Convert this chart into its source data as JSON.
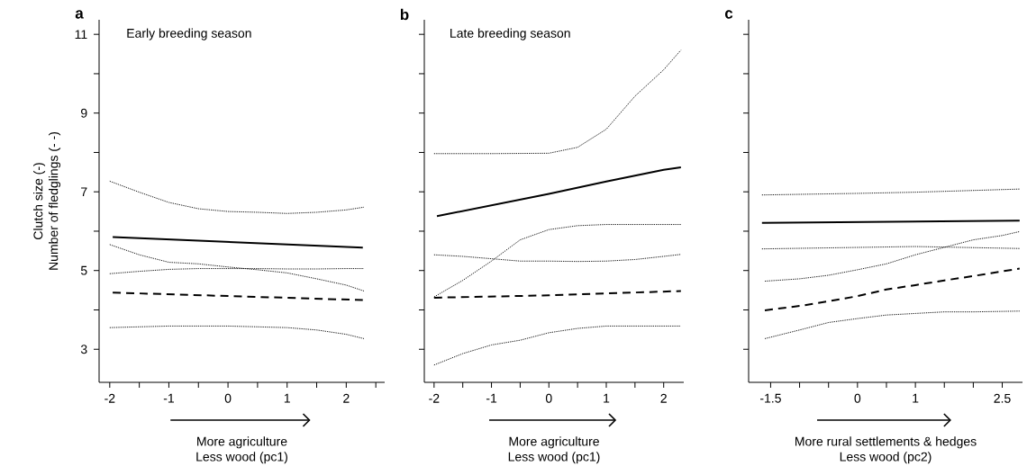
{
  "chart_data": [
    {
      "type": "line",
      "title": "a",
      "annotations": [
        "Early breeding season"
      ],
      "xlabel": "More agriculture\nLess wood (pc1)",
      "ylabel": "Clutch size (-)\nNumber of fledglings (- -)",
      "xlim": [
        -2.18,
        2.65
      ],
      "ylim": [
        2.16,
        11.37
      ],
      "xticks": [
        -2,
        {
          "value": -1.5,
          "label": null
        },
        -1,
        {
          "value": -0.5,
          "label": null
        },
        0,
        {
          "value": 0.5,
          "label": null
        },
        1,
        {
          "value": 1.5,
          "label": null
        },
        2,
        {
          "value": 2.5,
          "label": null
        }
      ],
      "yticks": [
        3,
        {
          "value": 4,
          "label": null
        },
        5,
        {
          "value": 6,
          "label": null
        },
        7,
        {
          "value": 8,
          "label": null
        },
        9,
        {
          "value": 10,
          "label": null
        },
        11
      ],
      "series": [
        {
          "color": "#000000",
          "line_style": "solid",
          "x": [
            -1.95,
            2.28
          ],
          "values": [
            5.85,
            5.58
          ]
        },
        {
          "color": "#000000",
          "line_style": "dashed",
          "x": [
            -1.95,
            2.28
          ],
          "values": [
            4.44,
            4.25
          ]
        },
        {
          "color": "#000000",
          "line_style": "dotted",
          "x": [
            -2,
            -1.5,
            -1,
            -0.5,
            0,
            0.5,
            1,
            1.5,
            2,
            2.3
          ],
          "values": [
            7.27,
            6.99,
            6.73,
            6.57,
            6.5,
            6.48,
            6.45,
            6.48,
            6.54,
            6.61
          ]
        },
        {
          "color": "#000000",
          "line_style": "dotted",
          "x": [
            -2,
            -1.5,
            -1,
            -0.5,
            0,
            0.5,
            1,
            1.5,
            2,
            2.3
          ],
          "values": [
            5.66,
            5.4,
            5.21,
            5.17,
            5.09,
            5.02,
            4.94,
            4.79,
            4.63,
            4.48
          ]
        },
        {
          "color": "#000000",
          "line_style": "dotted",
          "x": [
            -2,
            -1.5,
            -1,
            -0.5,
            0,
            0.5,
            1,
            1.5,
            2,
            2.3
          ],
          "values": [
            4.92,
            4.98,
            5.03,
            5.05,
            5.05,
            5.05,
            5.04,
            5.04,
            5.05,
            5.05
          ]
        },
        {
          "color": "#000000",
          "line_style": "dotted",
          "x": [
            -2,
            -1,
            0,
            1,
            1.5,
            2,
            2.3
          ],
          "values": [
            3.55,
            3.59,
            3.59,
            3.55,
            3.49,
            3.38,
            3.27
          ]
        }
      ]
    },
    {
      "type": "line",
      "title": "b",
      "annotations": [
        "Late breeding season"
      ],
      "xlabel": "More agriculture\nLess wood (pc1)",
      "tick_labels": "x",
      "xlim": [
        -2.17,
        2.35
      ],
      "ylim": [
        2.16,
        11.37
      ],
      "xticks": [
        -2,
        {
          "value": -1.5,
          "label": null
        },
        -1,
        {
          "value": -0.5,
          "label": null
        },
        0,
        {
          "value": 0.5,
          "label": null
        },
        1,
        {
          "value": 1.5,
          "label": null
        },
        2
      ],
      "yticks": [
        3,
        {
          "value": 4,
          "label": null
        },
        5,
        {
          "value": 6,
          "label": null
        },
        7,
        {
          "value": 8,
          "label": null
        },
        9,
        {
          "value": 10,
          "label": null
        },
        11
      ],
      "series": [
        {
          "color": "#000000",
          "line_style": "solid",
          "x": [
            -1.95,
            0,
            1,
            2,
            2.3
          ],
          "values": [
            6.38,
            6.95,
            7.26,
            7.56,
            7.62
          ]
        },
        {
          "color": "#000000",
          "line_style": "dashed",
          "x": [
            -2,
            0,
            2.3
          ],
          "values": [
            4.31,
            4.37,
            4.48
          ]
        },
        {
          "color": "#000000",
          "line_style": "dotted",
          "x": [
            -2,
            -1,
            0,
            0.5,
            1,
            1.5,
            2,
            2.3
          ],
          "values": [
            7.97,
            7.97,
            7.98,
            8.13,
            8.59,
            9.43,
            10.1,
            10.6
          ]
        },
        {
          "color": "#000000",
          "line_style": "dotted",
          "x": [
            -2,
            -1.5,
            -1,
            -0.5,
            0,
            0.5,
            1,
            1.5,
            2,
            2.3
          ],
          "values": [
            4.33,
            4.75,
            5.24,
            5.78,
            6.04,
            6.14,
            6.17,
            6.17,
            6.17,
            6.17
          ]
        },
        {
          "color": "#000000",
          "line_style": "dotted",
          "x": [
            -2,
            -1.5,
            -1,
            -0.5,
            0,
            0.5,
            1,
            1.5,
            2,
            2.3
          ],
          "values": [
            5.4,
            5.36,
            5.3,
            5.24,
            5.24,
            5.23,
            5.24,
            5.28,
            5.36,
            5.41
          ]
        },
        {
          "color": "#000000",
          "line_style": "dotted",
          "x": [
            -2,
            -1.5,
            -1,
            -0.5,
            0,
            0.5,
            1,
            2,
            2.3
          ],
          "values": [
            2.6,
            2.89,
            3.11,
            3.23,
            3.42,
            3.53,
            3.59,
            3.59,
            3.59
          ]
        }
      ]
    },
    {
      "type": "line",
      "title": "c",
      "xlabel": "More rural settlements & hedges\nLess wood (pc2)",
      "tick_labels": "x",
      "xlim": [
        -1.88,
        2.85
      ],
      "ylim": [
        2.16,
        11.37
      ],
      "xticks": [
        -1.5,
        {
          "value": -1,
          "label": null
        },
        {
          "value": -0.5,
          "label": null
        },
        0,
        {
          "value": 0.5,
          "label": null
        },
        1,
        {
          "value": 1.5,
          "label": null
        },
        {
          "value": 2,
          "label": null
        },
        2.5
      ],
      "yticks": [
        3,
        {
          "value": 4,
          "label": null
        },
        5,
        {
          "value": 6,
          "label": null
        },
        7,
        {
          "value": 8,
          "label": null
        },
        9,
        {
          "value": 10,
          "label": null
        },
        11
      ],
      "series": [
        {
          "color": "#000000",
          "line_style": "solid",
          "x": [
            -1.65,
            2.8
          ],
          "values": [
            6.21,
            6.27
          ]
        },
        {
          "color": "#000000",
          "line_style": "dashed",
          "x": [
            -1.6,
            -1,
            -0.5,
            0,
            0.5,
            1,
            1.5,
            2,
            2.5,
            2.8
          ],
          "values": [
            3.99,
            4.1,
            4.22,
            4.35,
            4.52,
            4.63,
            4.75,
            4.86,
            4.98,
            5.05
          ]
        },
        {
          "color": "#000000",
          "line_style": "dotted",
          "x": [
            -1.65,
            0,
            1,
            2.8
          ],
          "values": [
            6.92,
            6.96,
            6.99,
            7.07
          ]
        },
        {
          "color": "#000000",
          "line_style": "dotted",
          "x": [
            -1.65,
            1,
            2.8
          ],
          "values": [
            5.55,
            5.61,
            5.56
          ]
        },
        {
          "color": "#000000",
          "line_style": "dotted",
          "x": [
            -1.6,
            -1,
            -0.5,
            0,
            0.5,
            1,
            1.5,
            2,
            2.5,
            2.8
          ],
          "values": [
            4.73,
            4.79,
            4.88,
            5.02,
            5.17,
            5.4,
            5.59,
            5.78,
            5.89,
            5.99
          ]
        },
        {
          "color": "#000000",
          "line_style": "dotted",
          "x": [
            -1.6,
            -1,
            -0.5,
            0,
            0.5,
            1,
            1.5,
            2,
            2.8
          ],
          "values": [
            3.27,
            3.49,
            3.68,
            3.78,
            3.87,
            3.91,
            3.95,
            3.95,
            3.97
          ]
        }
      ]
    }
  ]
}
